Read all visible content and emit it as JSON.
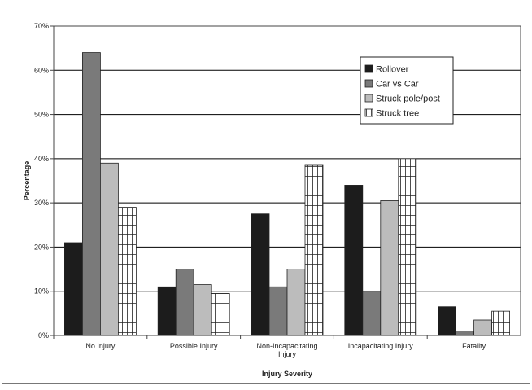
{
  "chart_data": {
    "type": "bar",
    "title": "",
    "xlabel": "Injury Severity",
    "ylabel": "Percentage",
    "ylim": [
      0,
      70
    ],
    "yticks": [
      0,
      10,
      20,
      30,
      40,
      50,
      60,
      70
    ],
    "ytick_labels": [
      "0%",
      "10%",
      "20%",
      "30%",
      "40%",
      "50%",
      "60%",
      "70%"
    ],
    "categories": [
      [
        "No Injury"
      ],
      [
        "Possible Injury"
      ],
      [
        "Non-Incapacitating",
        "Injury"
      ],
      [
        "Incapacitating Injury"
      ],
      [
        "Fatality"
      ]
    ],
    "series": [
      {
        "name": "Rollover",
        "values": [
          21,
          11,
          27.5,
          34,
          6.5
        ]
      },
      {
        "name": "Car vs Car",
        "values": [
          64,
          15,
          11,
          10,
          1
        ]
      },
      {
        "name": "Struck pole/post",
        "values": [
          39,
          11.5,
          15,
          30.5,
          3.5
        ]
      },
      {
        "name": "Struck tree",
        "values": [
          29,
          9.5,
          38.5,
          40,
          5.5
        ]
      }
    ],
    "grid": true,
    "legend": "top-right",
    "colors": {
      "Rollover": "#1c1c1c",
      "Car vs Car": "#7a7a7a",
      "Struck pole/post": "#bcbcbc",
      "Struck tree": "#ffffff",
      "grid": "#000000",
      "frame": "#444444"
    }
  }
}
